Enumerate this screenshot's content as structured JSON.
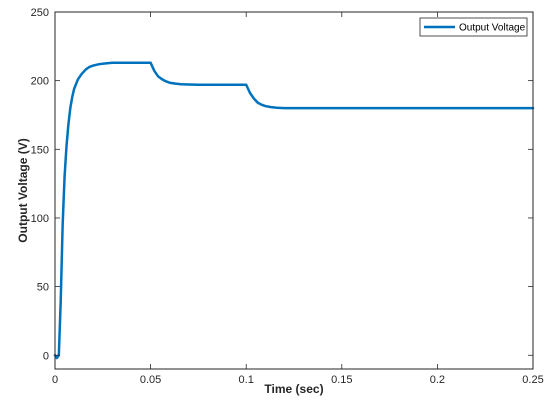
{
  "chart_data": {
    "type": "line",
    "title": "",
    "xlabel": "Time (sec)",
    "ylabel": "Output Voltage (V)",
    "xlim": [
      0,
      0.25
    ],
    "ylim": [
      -10,
      250
    ],
    "xticks": [
      0,
      0.05,
      0.1,
      0.15,
      0.2,
      0.25
    ],
    "xtick_labels": [
      "0",
      "0.05",
      "0.1",
      "0.15",
      "0.2",
      "0.25"
    ],
    "yticks": [
      0,
      50,
      100,
      150,
      200,
      250
    ],
    "ytick_labels": [
      "0",
      "50",
      "100",
      "150",
      "200",
      "250"
    ],
    "grid": false,
    "legend": {
      "position": "top-right"
    },
    "series": [
      {
        "name": "Output Voltage",
        "color": "#0072BD",
        "x": [
          0,
          0.001,
          0.002,
          0.003,
          0.004,
          0.005,
          0.006,
          0.007,
          0.008,
          0.009,
          0.01,
          0.012,
          0.014,
          0.016,
          0.018,
          0.02,
          0.023,
          0.026,
          0.03,
          0.035,
          0.04,
          0.045,
          0.05,
          0.051,
          0.052,
          0.054,
          0.056,
          0.058,
          0.06,
          0.063,
          0.066,
          0.07,
          0.075,
          0.08,
          0.09,
          0.1,
          0.101,
          0.102,
          0.104,
          0.106,
          0.108,
          0.11,
          0.113,
          0.116,
          0.12,
          0.125,
          0.13,
          0.14,
          0.15,
          0.2,
          0.25
        ],
        "y": [
          0,
          -2,
          0,
          40,
          95,
          130,
          152,
          168,
          180,
          188,
          194,
          201,
          205,
          208,
          210,
          211,
          212,
          212.5,
          213,
          213,
          213,
          213,
          213,
          210,
          207,
          203,
          201,
          199.5,
          198.5,
          197.8,
          197.4,
          197.2,
          197,
          197,
          197,
          197,
          194,
          191,
          187,
          184,
          182.5,
          181.5,
          180.7,
          180.3,
          180,
          180,
          180,
          180,
          180,
          180,
          180
        ]
      }
    ]
  }
}
